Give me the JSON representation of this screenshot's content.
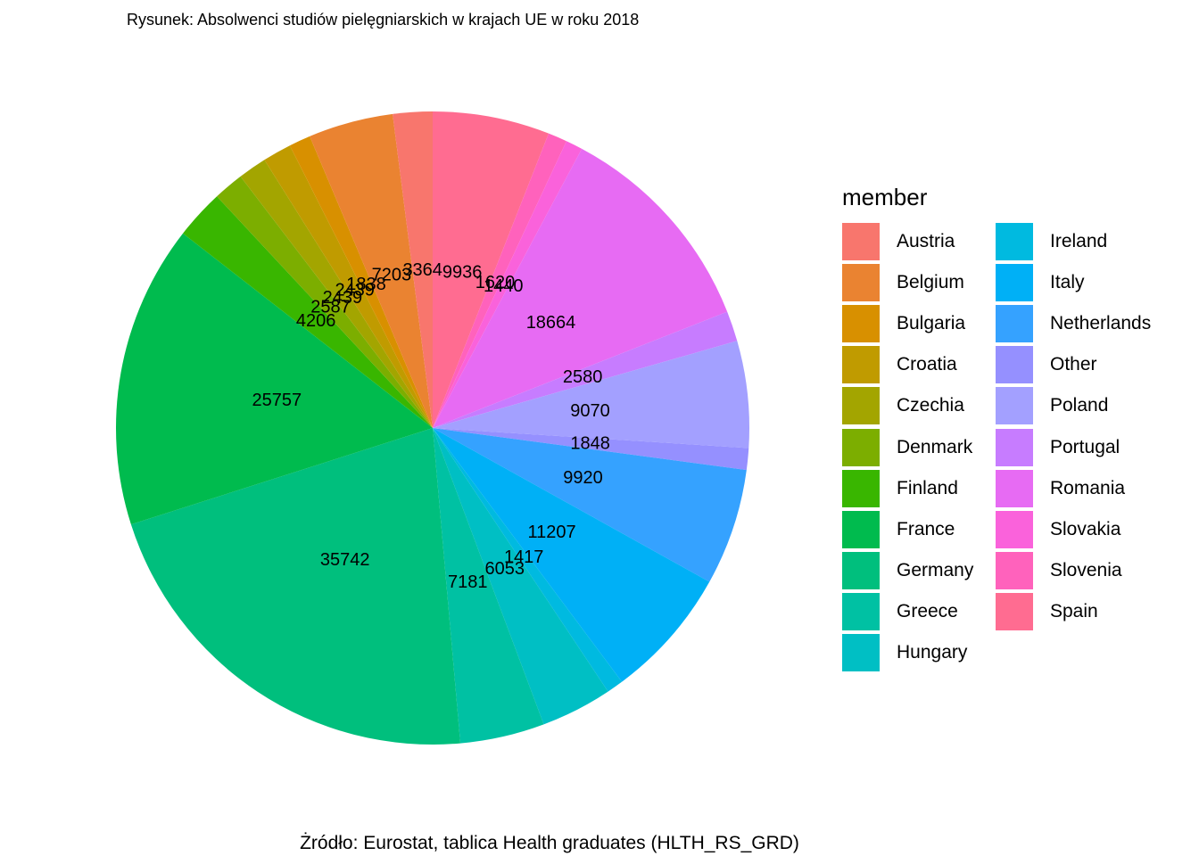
{
  "chart_data": {
    "type": "pie",
    "title": "Rysunek: Absolwenci studiów pielęgniarskich w krajach UE w roku 2018",
    "caption": "Żródło: Eurostat, tablica Health graduates (HLTH_RS_GRD)",
    "legend_title": "member",
    "legend_position": "right",
    "slices": [
      {
        "name": "Austria",
        "value": 3364,
        "color": "#F8766D"
      },
      {
        "name": "Belgium",
        "value": 7203,
        "color": "#EA8331"
      },
      {
        "name": "Bulgaria",
        "value": 1838,
        "color": "#D89000"
      },
      {
        "name": "Croatia",
        "value": 2439,
        "color": "#C09B00"
      },
      {
        "name": "Czechia",
        "value": 2439,
        "color": "#A3A500"
      },
      {
        "name": "Denmark",
        "value": 2587,
        "color": "#7CAE00"
      },
      {
        "name": "Finland",
        "value": 4206,
        "color": "#39B600"
      },
      {
        "name": "France",
        "value": 25757,
        "color": "#00BB4E"
      },
      {
        "name": "Germany",
        "value": 35742,
        "color": "#00BF7D"
      },
      {
        "name": "Greece",
        "value": 7181,
        "color": "#00C1A3"
      },
      {
        "name": "Hungary",
        "value": 6053,
        "color": "#00BFC4"
      },
      {
        "name": "Ireland",
        "value": 1417,
        "color": "#00BAE0"
      },
      {
        "name": "Italy",
        "value": 11207,
        "color": "#00B0F6"
      },
      {
        "name": "Netherlands",
        "value": 9920,
        "color": "#35A2FF"
      },
      {
        "name": "Other",
        "value": 1848,
        "color": "#9590FF"
      },
      {
        "name": "Poland",
        "value": 9070,
        "color": "#A3A0FF"
      },
      {
        "name": "Portugal",
        "value": 2580,
        "color": "#C77CFF"
      },
      {
        "name": "Romania",
        "value": 18664,
        "color": "#E76BF3"
      },
      {
        "name": "Slovakia",
        "value": 1440,
        "color": "#FA62DB"
      },
      {
        "name": "Slovenia",
        "value": 1620,
        "color": "#FF62BC"
      },
      {
        "name": "Spain",
        "value": 9936,
        "color": "#FF6C91"
      }
    ]
  }
}
